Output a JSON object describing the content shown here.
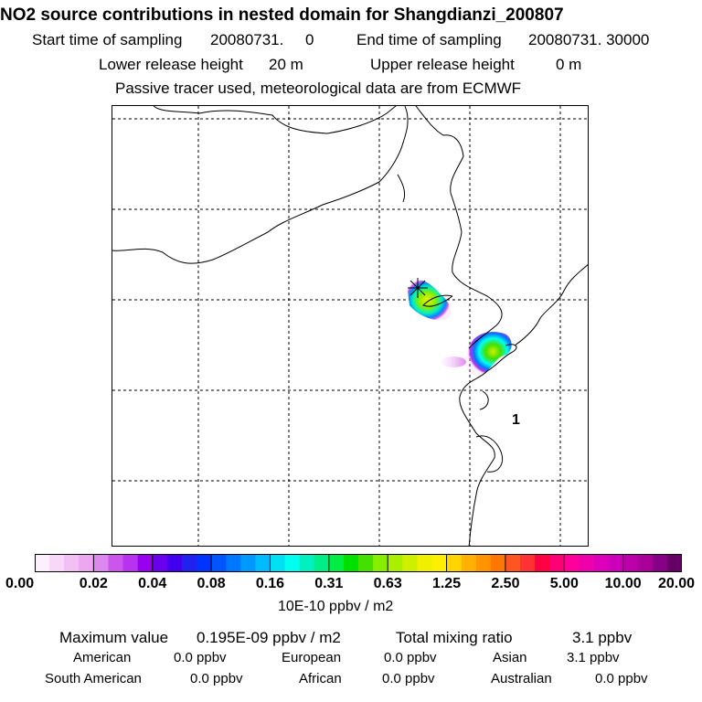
{
  "header": {
    "title": "NO2 source contributions in nested domain for Shangdianzi_200807",
    "start_label": "Start time of sampling",
    "start_value": "20080731.     0",
    "end_label": "End time of sampling",
    "end_value": "20080731. 30000",
    "lower_label": "Lower release height",
    "lower_value": "20 m",
    "upper_label": "Upper release height",
    "upper_value": "0 m",
    "note": "Passive tracer used, meteorological data are from ECMWF"
  },
  "map": {
    "region_label": "1",
    "colors": {
      "border": "#000000",
      "grid": "#000000"
    }
  },
  "colorbar": {
    "ticks": [
      "0.00",
      "0.02",
      "0.04",
      "0.08",
      "0.16",
      "0.31",
      "0.63",
      "1.25",
      "2.50",
      "5.00",
      "10.00",
      "20.00"
    ],
    "unit": "10E-10 ppbv / m2",
    "colors": [
      "#fdf0fd",
      "#f8d8f8",
      "#f2c0f2",
      "#eea6f0",
      "#dd88ee",
      "#cc55ee",
      "#b833f0",
      "#9900ee",
      "#6a00ee",
      "#4400ee",
      "#2222f0",
      "#0033ff",
      "#0055ff",
      "#0077ff",
      "#0099ff",
      "#00bbff",
      "#00e0f0",
      "#00ffee",
      "#00f0c0",
      "#00ee88",
      "#00ee44",
      "#00e000",
      "#44e000",
      "#88ee00",
      "#aaee00",
      "#ccf000",
      "#eef000",
      "#ffee00",
      "#ffd400",
      "#ffb000",
      "#ff9400",
      "#ff7700",
      "#ff5522",
      "#ff3333",
      "#ff0044",
      "#ff0077",
      "#ff0099",
      "#ee00aa",
      "#dd00bb",
      "#cc00bb",
      "#bb00aa",
      "#aa0099",
      "#880088",
      "#660066"
    ]
  },
  "summary": {
    "max_label": "Maximum value",
    "max_value": "0.195E-09 ppbv / m2",
    "total_label": "Total mixing ratio",
    "total_value": "3.1 ppbv",
    "regions": [
      {
        "name": "American",
        "value": "0.0 ppbv"
      },
      {
        "name": "European",
        "value": "0.0 ppbv"
      },
      {
        "name": "Asian",
        "value": "3.1 ppbv"
      },
      {
        "name": "South American",
        "value": "0.0 ppbv"
      },
      {
        "name": "African",
        "value": "0.0 ppbv"
      },
      {
        "name": "Australian",
        "value": "0.0 ppbv"
      }
    ]
  }
}
